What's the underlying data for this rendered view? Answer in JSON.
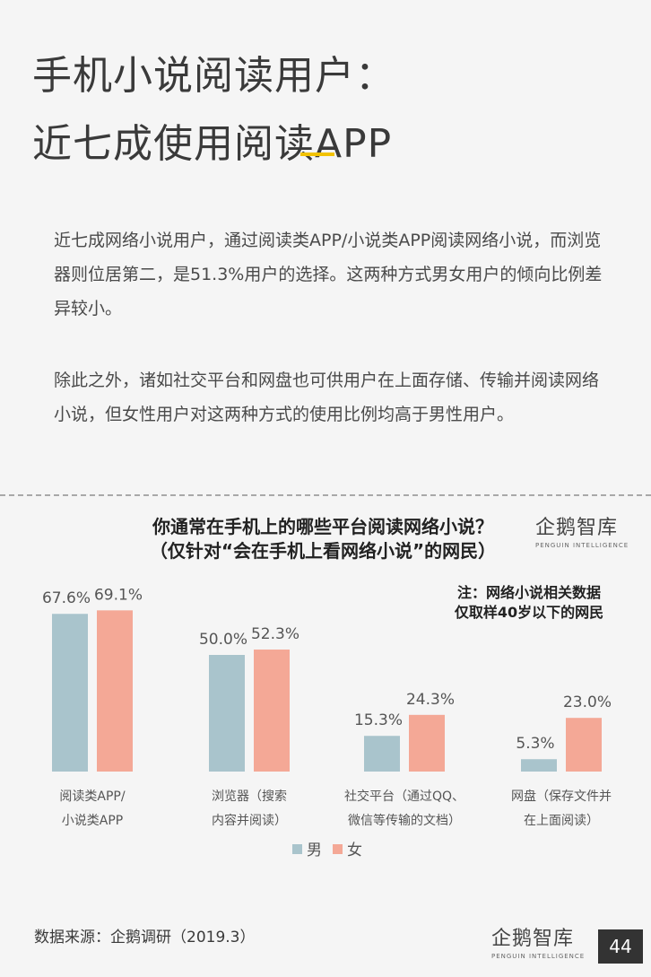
{
  "header": {
    "title_line1": "手机小说阅读用户：",
    "title_line2": "近七成使用阅读APP",
    "accent_color": "#f2c200"
  },
  "body": {
    "paragraph1": "近七成网络小说用户，通过阅读类APP/小说类APP阅读网络小说，而浏览器则位居第二，是51.3%用户的选择。这两种方式男女用户的倾向比例差异较小。",
    "paragraph2": "除此之外，诸如社交平台和网盘也可供用户在上面存储、传输并阅读网络小说，但女性用户对这两种方式的使用比例均高于男性用户。"
  },
  "chart_data": {
    "type": "bar",
    "title": "你通常在手机上的哪些平台阅读网络小说？（仅针对“会在手机上看网络小说”的网民）",
    "title_line1": "你通常在手机上的哪些平台阅读网络小说？",
    "title_line2": "（仅针对“会在手机上看网络小说”的网民）",
    "note": "注：网络小说相关数据仅取样40岁以下的网民",
    "categories": [
      [
        "阅读类APP/",
        "小说类APP"
      ],
      [
        "浏览器（搜索",
        "内容并阅读）"
      ],
      [
        "社交平台（通过QQ、",
        "微信等传输的文档）"
      ],
      [
        "网盘（保存文件并",
        "在上面阅读）"
      ]
    ],
    "series": [
      {
        "name": "男",
        "values": [
          67.6,
          50.0,
          15.3,
          5.3
        ],
        "labels": [
          "67.6%",
          "50.0%",
          "15.3%",
          "5.3%"
        ],
        "color": "#a9c4cc"
      },
      {
        "name": "女",
        "values": [
          69.1,
          52.3,
          24.3,
          23.0
        ],
        "labels": [
          "69.1%",
          "52.3%",
          "24.3%",
          "23.0%"
        ],
        "color": "#f4a896"
      }
    ],
    "ylim": [
      0,
      100
    ],
    "legend_position": "bottom",
    "grid": false
  },
  "logo": {
    "text": "企鹅智库",
    "sub": "PENGUIN INTELLIGENCE"
  },
  "footer": {
    "source": "数据来源：企鹅调研（2019.3）",
    "page_number": "44"
  }
}
